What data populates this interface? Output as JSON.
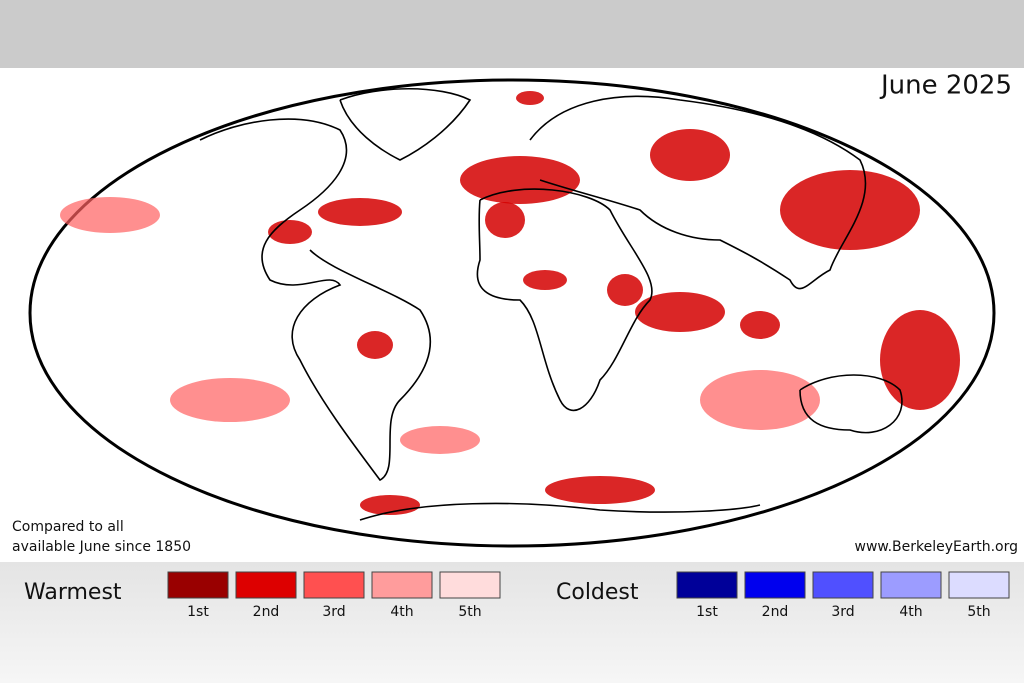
{
  "title": "June 2025",
  "note": [
    "Compared to all",
    "available June since 1850"
  ],
  "source": "www.BerkeleyEarth.org",
  "legend": [
    {
      "label": "Warmest",
      "items": [
        {
          "label": "1st",
          "color": "#990000"
        },
        {
          "label": "2nd",
          "color": "#dd0000"
        },
        {
          "label": "3rd",
          "color": "#ff5050"
        },
        {
          "label": "4th",
          "color": "#ff9c9c"
        },
        {
          "label": "5th",
          "color": "#ffdcdc"
        }
      ]
    },
    {
      "label": "Coldest",
      "items": [
        {
          "label": "1st",
          "color": "#000099"
        },
        {
          "label": "2nd",
          "color": "#0000ee"
        },
        {
          "label": "3rd",
          "color": "#5050ff"
        },
        {
          "label": "4th",
          "color": "#9c9cff"
        },
        {
          "label": "5th",
          "color": "#dcdcff"
        }
      ]
    }
  ]
}
